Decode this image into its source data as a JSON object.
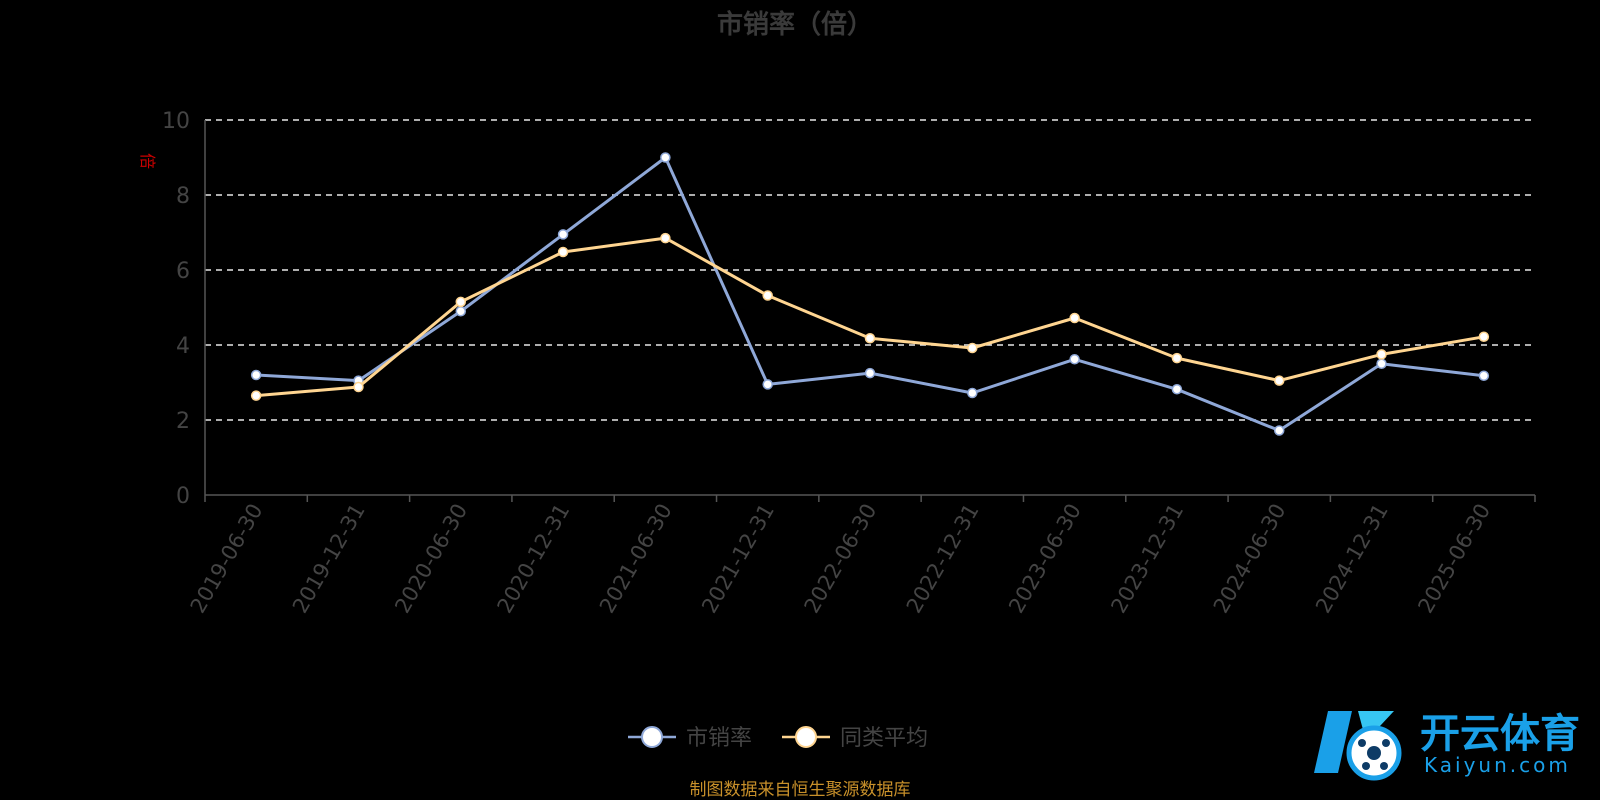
{
  "chart_data": {
    "type": "line",
    "title": "市销率（倍）",
    "ylabel": "倍",
    "ylim": [
      0,
      10
    ],
    "yticks": [
      0,
      2,
      4,
      6,
      8,
      10
    ],
    "grid": true,
    "legend_position": "bottom",
    "categories": [
      "2019-06-30",
      "2019-12-31",
      "2020-06-30",
      "2020-12-31",
      "2021-06-30",
      "2021-12-31",
      "2022-06-30",
      "2022-12-31",
      "2023-06-30",
      "2023-12-31",
      "2024-06-30",
      "2024-12-31",
      "2025-06-30"
    ],
    "series": [
      {
        "name": "市销率",
        "color": "#8fa8d8",
        "values": [
          3.2,
          3.05,
          4.9,
          6.95,
          9.0,
          2.95,
          3.25,
          2.72,
          3.62,
          2.82,
          1.72,
          3.5,
          3.18
        ]
      },
      {
        "name": "同类平均",
        "color": "#ffd591",
        "values": [
          2.65,
          2.88,
          5.15,
          6.48,
          6.85,
          5.32,
          4.18,
          3.92,
          4.72,
          3.65,
          3.05,
          3.75,
          4.22
        ]
      }
    ]
  },
  "source_note": "制图数据来自恒生聚源数据库",
  "watermark": {
    "name": "开云体育",
    "sub": "Kaiyun.com",
    "color": "#1aa0e8"
  }
}
